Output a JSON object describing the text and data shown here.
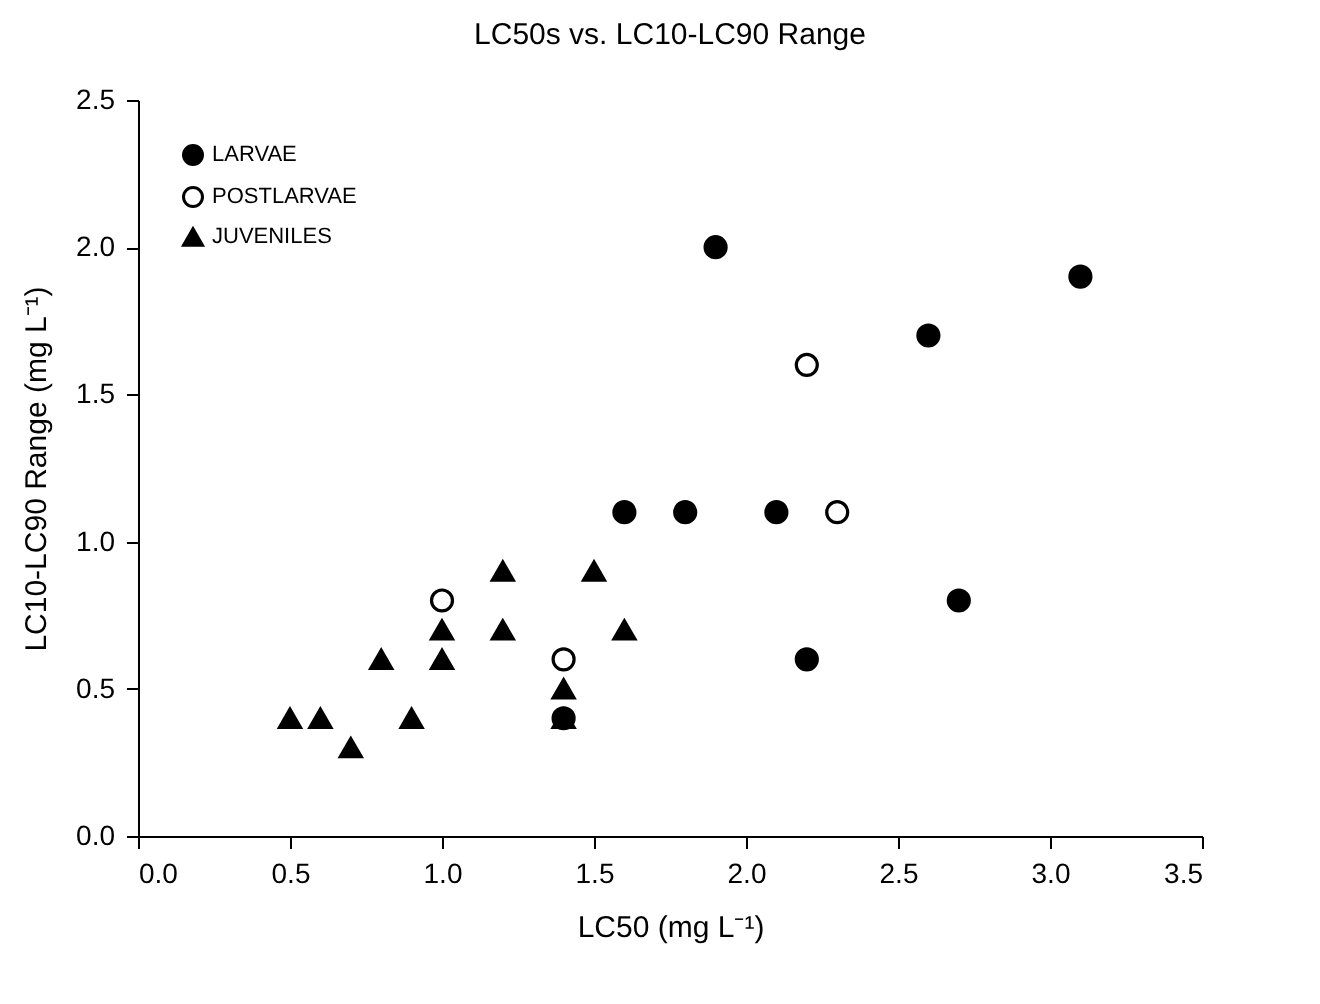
{
  "chart_data": {
    "type": "scatter",
    "title": "LC50s vs. LC10-LC90 Range",
    "xlabel": "LC50 (mg L⁻¹)",
    "ylabel": "LC10-LC90 Range (mg L⁻¹)",
    "xlim": [
      0,
      3.5
    ],
    "xticks": [
      {
        "value": 0,
        "label": "0.0"
      },
      {
        "value": 0.5,
        "label": "0.5"
      },
      {
        "value": 1,
        "label": "1.0"
      },
      {
        "value": 1.5,
        "label": "1.5"
      },
      {
        "value": 2,
        "label": "2.0"
      },
      {
        "value": 2.5,
        "label": "2.5"
      },
      {
        "value": 3,
        "label": "3.0"
      },
      {
        "value": 3.5,
        "label": "3.5"
      }
    ],
    "ylim": [
      0,
      2.5
    ],
    "yticks": [
      {
        "value": 0,
        "label": "0.0"
      },
      {
        "value": 0.5,
        "label": "0.5"
      },
      {
        "value": 1,
        "label": "1.0"
      },
      {
        "value": 1.5,
        "label": "1.5"
      },
      {
        "value": 2,
        "label": "2.0"
      },
      {
        "value": 2.5,
        "label": "2.5"
      }
    ],
    "grid": false,
    "legend": "top left",
    "series": [
      {
        "name": "LARVAE",
        "color": "#000000",
        "marker": "circle",
        "x": [
          1.9,
          3.1,
          2.6,
          1.6,
          1.8,
          2.1,
          2.7,
          2.2,
          1.4
        ],
        "values": [
          2.0,
          1.9,
          1.7,
          1.1,
          1.1,
          1.1,
          0.8,
          0.6,
          0.4
        ]
      },
      {
        "name": "POSTLARVAE",
        "color": "#ffffff",
        "marker": "circle",
        "x": [
          2.2,
          2.3,
          1.0,
          1.4
        ],
        "values": [
          1.6,
          1.1,
          0.8,
          0.6
        ]
      },
      {
        "name": "JUVENILES",
        "color": "#000000",
        "marker": "triangle",
        "x": [
          0.5,
          0.6,
          0.7,
          0.8,
          0.9,
          1.0,
          1.0,
          1.2,
          1.2,
          1.5,
          1.6,
          1.4,
          1.4
        ],
        "values": [
          0.4,
          0.4,
          0.3,
          0.6,
          0.4,
          0.7,
          0.6,
          0.9,
          0.7,
          0.9,
          0.7,
          0.5,
          0.4
        ]
      }
    ]
  }
}
